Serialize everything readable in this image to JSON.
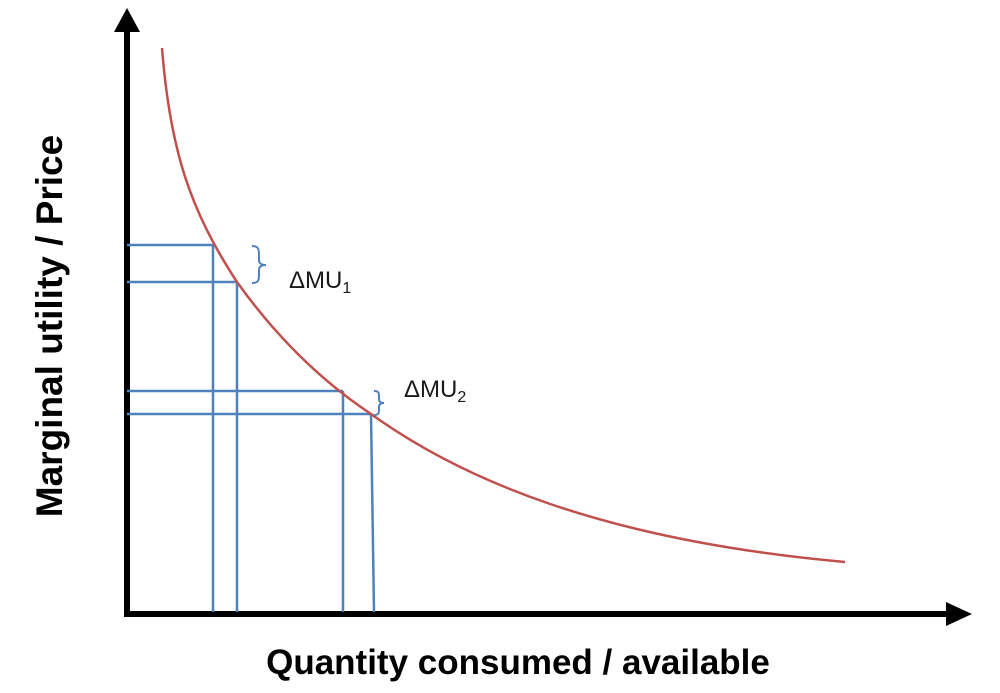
{
  "labels": {
    "y_axis": "Marginal utility / Price",
    "x_axis": "Quantity consumed / available",
    "delta1": {
      "main": "ΔMU",
      "sub": "1"
    },
    "delta2": {
      "main": "ΔMU",
      "sub": "2"
    }
  },
  "colors": {
    "curve": "#c0504d",
    "guides": "#4f81bd",
    "axes": "#000000"
  }
}
